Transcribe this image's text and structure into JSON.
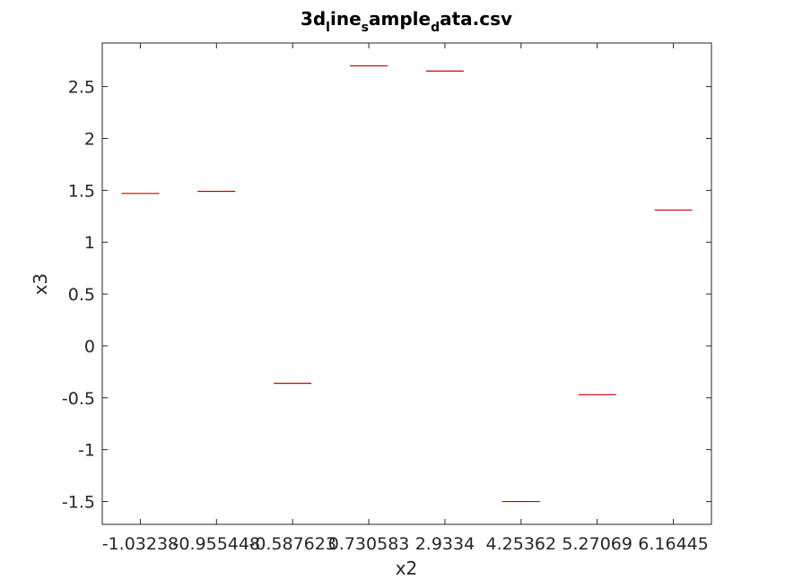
{
  "chart_data": {
    "type": "bar",
    "title": "3d_line_sample_data.csv",
    "title_display": {
      "parts": [
        {
          "text": "3d",
          "sub": false
        },
        {
          "text": "l",
          "sub": true
        },
        {
          "text": "ine",
          "sub": false
        },
        {
          "text": "s",
          "sub": true
        },
        {
          "text": "ample",
          "sub": false
        },
        {
          "text": "d",
          "sub": true
        },
        {
          "text": "ata.csv",
          "sub": false
        }
      ]
    },
    "xlabel": "x2",
    "ylabel": "x3",
    "categories": [
      "-1.03238",
      "-0.955448",
      "-0.587623",
      "0.730583",
      "2.9334",
      "4.25362",
      "5.27069",
      "6.16445"
    ],
    "values": [
      1.47,
      1.49,
      -0.36,
      2.7,
      2.65,
      -1.5,
      -0.47,
      1.31
    ],
    "ylim": [
      -1.72,
      2.92
    ],
    "yticks": [
      -1.5,
      -1,
      -0.5,
      0,
      0.5,
      1,
      1.5,
      2,
      2.5
    ],
    "ytick_labels": [
      "-1.5",
      "-1",
      "-0.5",
      "0",
      "0.5",
      "1",
      "1.5",
      "2",
      "2.5"
    ],
    "bar_color": "#cc0000",
    "axis_color": "#262626",
    "grid": false,
    "legend": "none"
  }
}
